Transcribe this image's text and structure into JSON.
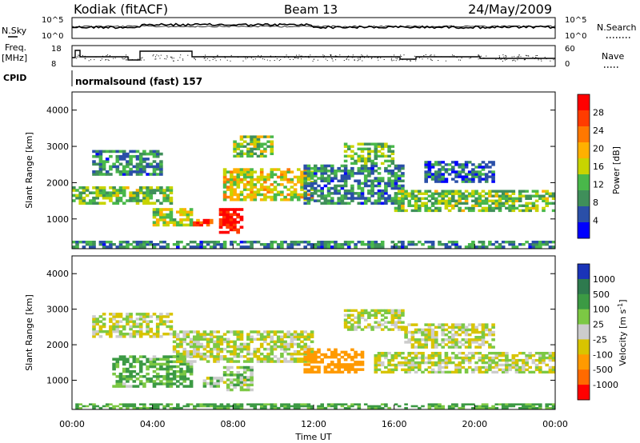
{
  "header": {
    "station": "Kodiak (fitACF)",
    "beam": "Beam 13",
    "date": "24/May/2009"
  },
  "top_panels": {
    "nsky_label": "N.Sky",
    "nsearch_label": "N.Search",
    "freq_label_1": "Freq.",
    "freq_label_2": "[MHz]",
    "nave_label": "Nave",
    "cpid_label": "CPID",
    "nsky_ticks": [
      "10^5",
      "10^0"
    ],
    "nsearch_ticks": [
      "10^5",
      "10^0"
    ],
    "freq_ticks": [
      "18",
      "8"
    ],
    "nave_ticks": [
      "60",
      "0"
    ],
    "cpid_text": "normalsound (fast) 157"
  },
  "colors": {
    "power_scale": [
      "#0000ff",
      "#2a4fa8",
      "#3f8f5a",
      "#49b84a",
      "#c8d400",
      "#ffb000",
      "#ff7800",
      "#ff3c00",
      "#ff0000"
    ],
    "velocity_scale": [
      "#1a34b8",
      "#2e7a4e",
      "#3c9a44",
      "#7cc844",
      "#cccccc",
      "#d8c400",
      "#ff9a00",
      "#ff6a00",
      "#ff0000"
    ]
  },
  "chart_data": [
    {
      "type": "heatmap",
      "title": "",
      "ylabel": "Slant Range [km]",
      "xlabel": "",
      "colorbar_label": "Power [dB]",
      "colorbar_ticks": [
        "28",
        "24",
        "20",
        "16",
        "12",
        "8",
        "4"
      ],
      "ylim": [
        180,
        4500
      ],
      "xlim": [
        "00:00",
        "24:00"
      ],
      "yticks": [
        "1000",
        "2000",
        "3000",
        "4000"
      ],
      "xticks": [
        "00:00",
        "04:00",
        "08:00",
        "12:00",
        "16:00",
        "20:00",
        "00:00"
      ],
      "echo_regions": [
        {
          "t0": 0.0,
          "t1": 24.0,
          "r0": 200,
          "r1": 400,
          "power": 10
        },
        {
          "t0": 0.0,
          "t1": 5.0,
          "r0": 1400,
          "r1": 1900,
          "power": 14
        },
        {
          "t0": 1.0,
          "t1": 4.5,
          "r0": 2200,
          "r1": 2900,
          "power": 10
        },
        {
          "t0": 4.0,
          "t1": 6.0,
          "r0": 800,
          "r1": 1300,
          "power": 16
        },
        {
          "t0": 6.0,
          "t1": 7.0,
          "r0": 800,
          "r1": 1000,
          "power": 26
        },
        {
          "t0": 7.3,
          "t1": 8.5,
          "r0": 600,
          "r1": 1300,
          "power": 30
        },
        {
          "t0": 7.5,
          "t1": 12.0,
          "r0": 1500,
          "r1": 2400,
          "power": 18
        },
        {
          "t0": 8.0,
          "t1": 10.0,
          "r0": 2700,
          "r1": 3300,
          "power": 14
        },
        {
          "t0": 11.5,
          "t1": 16.5,
          "r0": 1400,
          "r1": 2500,
          "power": 10
        },
        {
          "t0": 13.5,
          "t1": 16.0,
          "r0": 2500,
          "r1": 3100,
          "power": 14
        },
        {
          "t0": 16.0,
          "t1": 24.0,
          "r0": 1200,
          "r1": 1800,
          "power": 14
        },
        {
          "t0": 17.5,
          "t1": 21.0,
          "r0": 2000,
          "r1": 2600,
          "power": 8
        }
      ]
    },
    {
      "type": "heatmap",
      "title": "",
      "ylabel": "Slant Range [km]",
      "xlabel": "Time UT",
      "colorbar_label": "Velocity [m s^-1]",
      "colorbar_ticks": [
        "1000",
        "500",
        "100",
        "25",
        "-25",
        "-100",
        "-500",
        "-1000"
      ],
      "ylim": [
        180,
        4500
      ],
      "xlim": [
        "00:00",
        "24:00"
      ],
      "yticks": [
        "1000",
        "2000",
        "3000",
        "4000"
      ],
      "xticks": [
        "00:00",
        "04:00",
        "08:00",
        "12:00",
        "16:00",
        "20:00",
        "00:00"
      ],
      "echo_regions": [
        {
          "t0": 0.0,
          "t1": 24.0,
          "r0": 200,
          "r1": 350,
          "velocity": 150
        },
        {
          "t0": 1.0,
          "t1": 5.0,
          "r0": 2200,
          "r1": 2900,
          "velocity": 0
        },
        {
          "t0": 2.0,
          "t1": 6.0,
          "r0": 800,
          "r1": 1700,
          "velocity": 120
        },
        {
          "t0": 6.5,
          "t1": 7.5,
          "r0": 800,
          "r1": 1100,
          "velocity": 60
        },
        {
          "t0": 7.5,
          "t1": 9.0,
          "r0": 700,
          "r1": 1400,
          "velocity": 60
        },
        {
          "t0": 5.0,
          "t1": 12.0,
          "r0": 1500,
          "r1": 2400,
          "velocity": 0
        },
        {
          "t0": 11.5,
          "t1": 14.5,
          "r0": 1200,
          "r1": 1900,
          "velocity": -300
        },
        {
          "t0": 13.5,
          "t1": 16.5,
          "r0": 2400,
          "r1": 3000,
          "velocity": 0
        },
        {
          "t0": 15.0,
          "t1": 24.0,
          "r0": 1200,
          "r1": 1800,
          "velocity": 0
        },
        {
          "t0": 16.5,
          "t1": 21.0,
          "r0": 1900,
          "r1": 2600,
          "velocity": 0
        }
      ]
    }
  ]
}
